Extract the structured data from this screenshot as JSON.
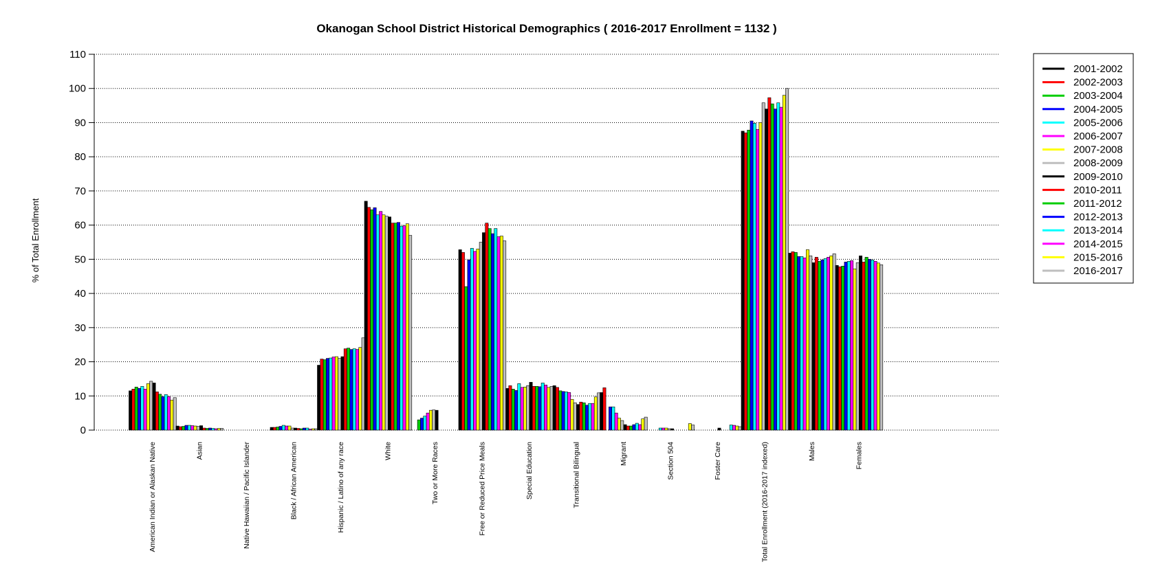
{
  "chart_data": {
    "type": "bar",
    "title": "Okanogan School District Historical Demographics  ( 2016-2017 Enrollment =  1132 )",
    "xlabel": "",
    "ylabel": "% of Total Enrollment",
    "ylim": [
      0,
      110
    ],
    "yticks": [
      0,
      10,
      20,
      30,
      40,
      50,
      60,
      70,
      80,
      90,
      100,
      110
    ],
    "grid": "horizontal dotted",
    "legend_position": "top-right",
    "categories": [
      "American Indian or Alaskan Native",
      "Asian",
      "Native Hawaiian / Pacific Islander",
      "Black / African American",
      "Hispanic / Latino of any race",
      "White",
      "Two or More Races",
      "Free or Reduced Price Meals",
      "Special Education",
      "Transitional Bilingual",
      "Migrant",
      "Section 504",
      "Foster Care",
      "Total Enrollment (2016-2017 indexed)",
      "Males",
      "Females"
    ],
    "series": [
      {
        "name": "2001-2002",
        "color": "#000000",
        "values": [
          11.5,
          1.2,
          0,
          0.8,
          19.0,
          67.0,
          0,
          52.8,
          12.2,
          13.0,
          11.0,
          0,
          0,
          87.5,
          51.8,
          48.2
        ]
      },
      {
        "name": "2002-2003",
        "color": "#ff0000",
        "values": [
          12.0,
          1.0,
          0,
          0.8,
          20.8,
          65.2,
          0,
          52.0,
          13.0,
          12.5,
          12.4,
          0,
          0,
          87.0,
          52.2,
          47.8
        ]
      },
      {
        "name": "2003-2004",
        "color": "#00cd00",
        "values": [
          12.6,
          1.1,
          0,
          0.9,
          20.6,
          64.5,
          3.0,
          42.0,
          12.0,
          11.5,
          0,
          0,
          0,
          87.8,
          52.0,
          48.0
        ]
      },
      {
        "name": "2004-2005",
        "color": "#0000ff",
        "values": [
          12.2,
          1.4,
          0,
          1.1,
          21.0,
          65.1,
          3.5,
          49.8,
          11.6,
          11.3,
          6.8,
          0,
          0,
          90.5,
          50.8,
          49.2
        ]
      },
      {
        "name": "2005-2006",
        "color": "#00ffff",
        "values": [
          12.8,
          1.4,
          0,
          1.4,
          21.1,
          63.0,
          4.1,
          53.2,
          13.6,
          11.2,
          6.8,
          0.6,
          0,
          89.8,
          50.8,
          49.4
        ]
      },
      {
        "name": "2006-2007",
        "color": "#ff00ff",
        "values": [
          12.0,
          1.3,
          0,
          1.2,
          21.4,
          64.0,
          5.0,
          52.3,
          12.5,
          11.0,
          5.0,
          0.6,
          0,
          88.0,
          50.4,
          49.6
        ]
      },
      {
        "name": "2007-2008",
        "color": "#ffff00",
        "values": [
          13.6,
          1.2,
          0,
          1.2,
          21.5,
          63.0,
          5.8,
          53.0,
          12.6,
          9.0,
          3.5,
          0.6,
          0,
          90.0,
          52.8,
          47.2
        ]
      },
      {
        "name": "2008-2009",
        "color": "#bebebe",
        "values": [
          14.3,
          1.1,
          0,
          0.6,
          21.0,
          62.6,
          5.9,
          55.0,
          13.0,
          8.0,
          2.8,
          0.4,
          0,
          95.8,
          51.0,
          49.0
        ]
      },
      {
        "name": "2009-2010",
        "color": "#000000",
        "values": [
          13.8,
          1.3,
          0,
          0.6,
          21.5,
          62.4,
          5.8,
          57.8,
          14.0,
          7.5,
          1.6,
          0.4,
          0.6,
          94.0,
          49.0,
          51.0
        ]
      },
      {
        "name": "2010-2011",
        "color": "#ff0000",
        "values": [
          11.2,
          0.6,
          0,
          0.5,
          23.8,
          60.6,
          0,
          60.6,
          12.8,
          8.2,
          1.2,
          0,
          0,
          97.3,
          50.6,
          49.2
        ]
      },
      {
        "name": "2011-2012",
        "color": "#00cd00",
        "values": [
          10.5,
          0.5,
          0,
          0.4,
          24.0,
          60.6,
          0,
          59.0,
          12.8,
          8.0,
          1.2,
          0,
          0,
          95.5,
          49.4,
          50.6
        ]
      },
      {
        "name": "2012-2013",
        "color": "#0000ff",
        "values": [
          9.8,
          0.6,
          0,
          0.6,
          23.6,
          60.8,
          0,
          57.5,
          12.7,
          7.3,
          1.6,
          0,
          0,
          94.0,
          49.8,
          50.0
        ]
      },
      {
        "name": "2013-2014",
        "color": "#00ffff",
        "values": [
          10.4,
          0.5,
          0,
          0.6,
          23.8,
          59.7,
          0,
          59.0,
          13.8,
          7.8,
          2.0,
          0,
          1.5,
          95.8,
          50.2,
          49.8
        ]
      },
      {
        "name": "2014-2015",
        "color": "#ff00ff",
        "values": [
          9.8,
          0.4,
          0,
          0.3,
          23.6,
          59.8,
          0,
          56.6,
          13.2,
          7.8,
          1.6,
          0,
          1.4,
          94.5,
          50.6,
          49.4
        ]
      },
      {
        "name": "2015-2016",
        "color": "#ffff00",
        "values": [
          8.8,
          0.5,
          0,
          0.4,
          24.2,
          60.4,
          0,
          56.8,
          12.5,
          9.7,
          3.3,
          1.9,
          1.2,
          98.0,
          51.0,
          48.9
        ]
      },
      {
        "name": "2016-2017",
        "color": "#bebebe",
        "values": [
          9.5,
          0.5,
          0,
          0.4,
          27.0,
          57.0,
          0,
          55.4,
          12.8,
          10.9,
          3.8,
          1.5,
          1.0,
          100.0,
          51.6,
          48.4
        ]
      }
    ]
  }
}
